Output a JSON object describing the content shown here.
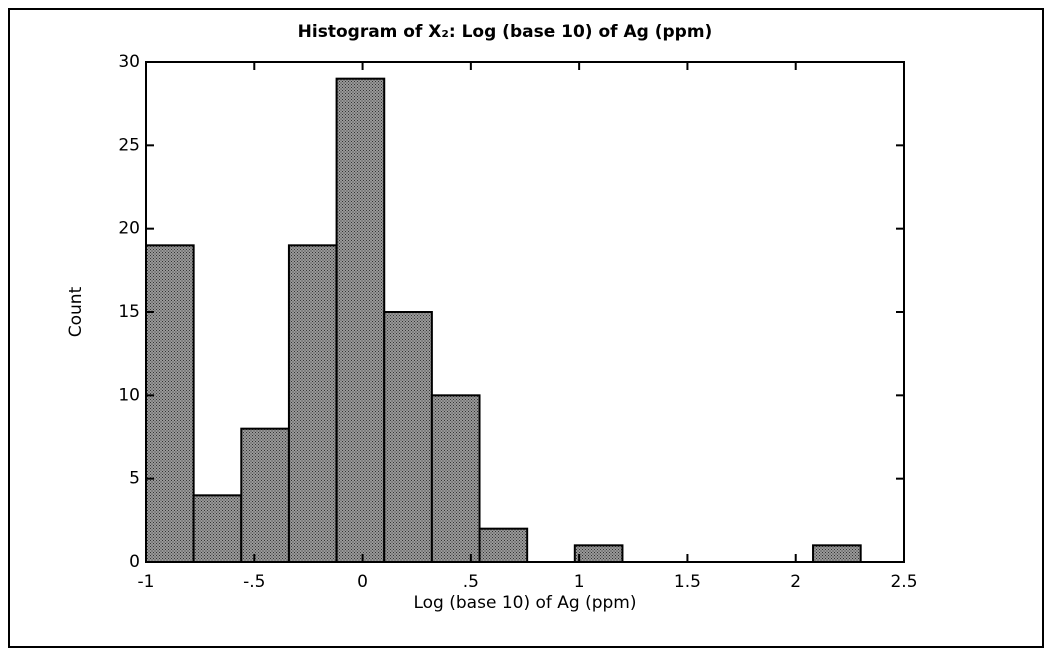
{
  "chart_data": {
    "type": "histogram",
    "title": "Histogram of X₂: Log (base 10) of Ag (ppm)",
    "x_label": "Log (base 10) of Ag (ppm)",
    "y_label": "Count",
    "bins": [
      -1,
      -0.78,
      -0.56,
      -0.34,
      -0.12,
      0.1,
      0.32,
      0.54,
      0.76,
      0.98,
      1.2,
      1.42,
      1.64,
      1.86,
      2.08,
      2.3
    ],
    "counts": [
      19,
      4,
      8,
      19,
      29,
      15,
      10,
      2,
      0,
      1,
      0,
      0,
      0,
      0,
      1
    ],
    "color": "#7a7a7a",
    "xlim": [
      -1,
      2.5
    ],
    "xticks": [
      -1,
      {
        "value": -0.5,
        "label": "-.5"
      },
      0,
      {
        "value": 0.5,
        "label": ".5"
      },
      1,
      1.5,
      2,
      2.5
    ],
    "ylim": [
      0,
      30
    ],
    "yticks": [
      0,
      5,
      10,
      15,
      20,
      25,
      30
    ],
    "grid": false
  }
}
